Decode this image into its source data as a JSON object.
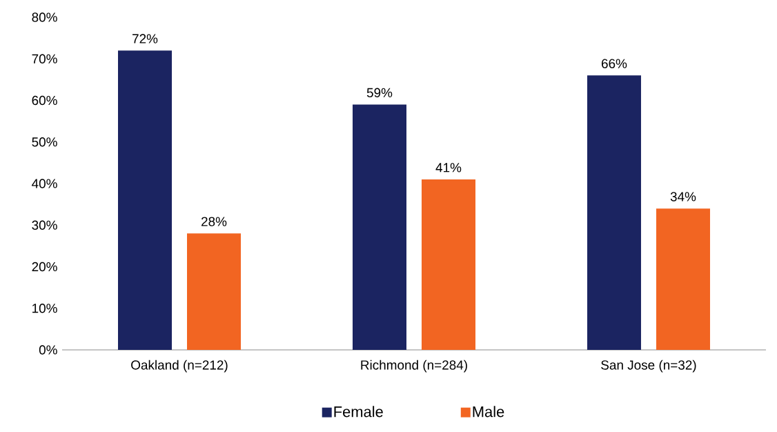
{
  "chart_data": {
    "type": "bar",
    "categories": [
      "Oakland (n=212)",
      "Richmond (n=284)",
      "San Jose (n=32)"
    ],
    "series": [
      {
        "name": "Female",
        "color": "#1b2461",
        "values": [
          72,
          59,
          66
        ],
        "value_labels": [
          "72%",
          "59%",
          "66%"
        ]
      },
      {
        "name": "Male",
        "color": "#f26522",
        "values": [
          28,
          41,
          34
        ],
        "value_labels": [
          "28%",
          "41%",
          "34%"
        ]
      }
    ],
    "ylim": [
      0,
      80
    ],
    "yticks": [
      {
        "value": 0,
        "label": "0%"
      },
      {
        "value": 10,
        "label": "10%"
      },
      {
        "value": 20,
        "label": "20%"
      },
      {
        "value": 30,
        "label": "30%"
      },
      {
        "value": 40,
        "label": "40%"
      },
      {
        "value": 50,
        "label": "50%"
      },
      {
        "value": 60,
        "label": "60%"
      },
      {
        "value": 70,
        "label": "70%"
      },
      {
        "value": 80,
        "label": "80%"
      }
    ],
    "grid": false,
    "legend": "bottom"
  }
}
